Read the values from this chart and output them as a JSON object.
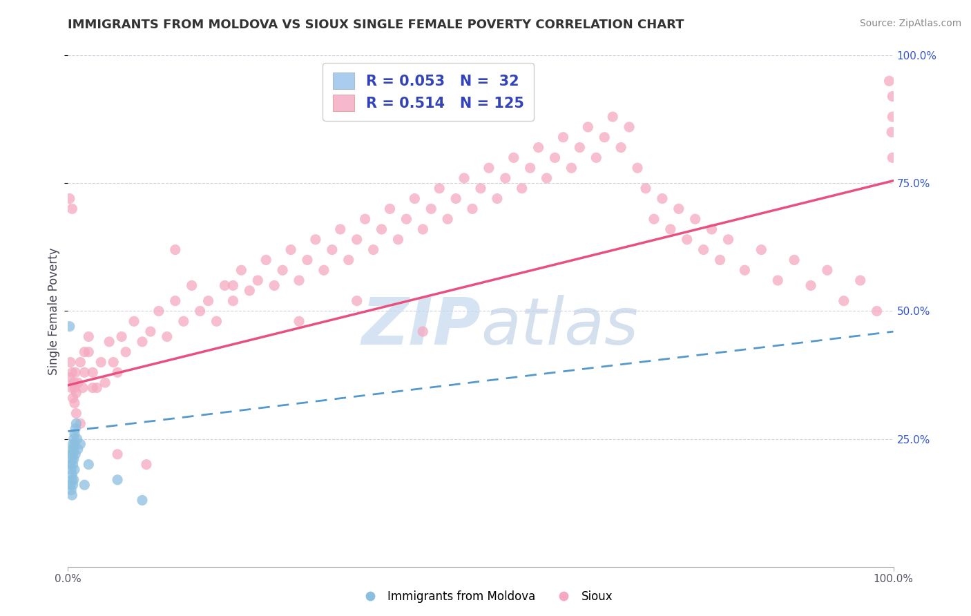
{
  "title": "IMMIGRANTS FROM MOLDOVA VS SIOUX SINGLE FEMALE POVERTY CORRELATION CHART",
  "source": "Source: ZipAtlas.com",
  "ylabel": "Single Female Poverty",
  "xlim": [
    0,
    1
  ],
  "ylim": [
    0,
    1
  ],
  "watermark": "ZIPatlas",
  "scatter_color_blue": "#8BBFE0",
  "scatter_color_pink": "#F5A8C0",
  "line_color_blue": "#5599CC",
  "line_color_pink": "#E85080",
  "bg_color": "#ffffff",
  "grid_color": "#CCCCDD",
  "watermark_color": "#BECFE8",
  "legend_box_color_blue": "#AACCEE",
  "legend_box_color_pink": "#F5B8CC",
  "legend_text_color": "#3344BB",
  "axis_label_color": "#444455",
  "ytick_color": "#3355CC",
  "blue_line_start_y": 0.265,
  "blue_line_end_y": 0.46,
  "pink_line_start_y": 0.355,
  "pink_line_end_y": 0.755,
  "blue_scatter_x": [
    0.002,
    0.003,
    0.003,
    0.004,
    0.004,
    0.004,
    0.005,
    0.005,
    0.005,
    0.005,
    0.005,
    0.006,
    0.006,
    0.006,
    0.006,
    0.007,
    0.007,
    0.007,
    0.007,
    0.008,
    0.008,
    0.008,
    0.009,
    0.009,
    0.01,
    0.011,
    0.012,
    0.015,
    0.02,
    0.025,
    0.06,
    0.09
  ],
  "blue_scatter_y": [
    0.47,
    0.2,
    0.16,
    0.22,
    0.19,
    0.15,
    0.23,
    0.21,
    0.18,
    0.17,
    0.14,
    0.24,
    0.22,
    0.2,
    0.16,
    0.25,
    0.23,
    0.21,
    0.17,
    0.26,
    0.24,
    0.19,
    0.27,
    0.22,
    0.28,
    0.25,
    0.23,
    0.24,
    0.16,
    0.2,
    0.17,
    0.13
  ],
  "pink_scatter_x": [
    0.002,
    0.003,
    0.004,
    0.005,
    0.006,
    0.007,
    0.008,
    0.009,
    0.01,
    0.012,
    0.015,
    0.018,
    0.02,
    0.025,
    0.03,
    0.035,
    0.04,
    0.045,
    0.05,
    0.055,
    0.06,
    0.065,
    0.07,
    0.08,
    0.09,
    0.1,
    0.11,
    0.12,
    0.13,
    0.14,
    0.15,
    0.16,
    0.17,
    0.18,
    0.19,
    0.2,
    0.21,
    0.22,
    0.23,
    0.24,
    0.25,
    0.26,
    0.27,
    0.28,
    0.29,
    0.3,
    0.31,
    0.32,
    0.33,
    0.34,
    0.35,
    0.36,
    0.37,
    0.38,
    0.39,
    0.4,
    0.41,
    0.42,
    0.43,
    0.44,
    0.45,
    0.46,
    0.47,
    0.48,
    0.49,
    0.5,
    0.51,
    0.52,
    0.53,
    0.54,
    0.55,
    0.56,
    0.57,
    0.58,
    0.59,
    0.6,
    0.61,
    0.62,
    0.63,
    0.64,
    0.65,
    0.66,
    0.67,
    0.68,
    0.69,
    0.7,
    0.71,
    0.72,
    0.73,
    0.74,
    0.75,
    0.76,
    0.77,
    0.78,
    0.79,
    0.8,
    0.82,
    0.84,
    0.86,
    0.88,
    0.9,
    0.92,
    0.94,
    0.96,
    0.98,
    0.995,
    0.998,
    0.999,
    0.999,
    0.999,
    0.002,
    0.005,
    0.008,
    0.01,
    0.015,
    0.02,
    0.025,
    0.03,
    0.06,
    0.095,
    0.13,
    0.2,
    0.28,
    0.35,
    0.43
  ],
  "pink_scatter_y": [
    0.37,
    0.4,
    0.35,
    0.38,
    0.33,
    0.36,
    0.32,
    0.38,
    0.34,
    0.36,
    0.4,
    0.35,
    0.38,
    0.42,
    0.38,
    0.35,
    0.4,
    0.36,
    0.44,
    0.4,
    0.38,
    0.45,
    0.42,
    0.48,
    0.44,
    0.46,
    0.5,
    0.45,
    0.52,
    0.48,
    0.55,
    0.5,
    0.52,
    0.48,
    0.55,
    0.52,
    0.58,
    0.54,
    0.56,
    0.6,
    0.55,
    0.58,
    0.62,
    0.56,
    0.6,
    0.64,
    0.58,
    0.62,
    0.66,
    0.6,
    0.64,
    0.68,
    0.62,
    0.66,
    0.7,
    0.64,
    0.68,
    0.72,
    0.66,
    0.7,
    0.74,
    0.68,
    0.72,
    0.76,
    0.7,
    0.74,
    0.78,
    0.72,
    0.76,
    0.8,
    0.74,
    0.78,
    0.82,
    0.76,
    0.8,
    0.84,
    0.78,
    0.82,
    0.86,
    0.8,
    0.84,
    0.88,
    0.82,
    0.86,
    0.78,
    0.74,
    0.68,
    0.72,
    0.66,
    0.7,
    0.64,
    0.68,
    0.62,
    0.66,
    0.6,
    0.64,
    0.58,
    0.62,
    0.56,
    0.6,
    0.55,
    0.58,
    0.52,
    0.56,
    0.5,
    0.95,
    0.85,
    0.88,
    0.92,
    0.8,
    0.72,
    0.7,
    0.35,
    0.3,
    0.28,
    0.42,
    0.45,
    0.35,
    0.22,
    0.2,
    0.62,
    0.55,
    0.48,
    0.52,
    0.46
  ]
}
